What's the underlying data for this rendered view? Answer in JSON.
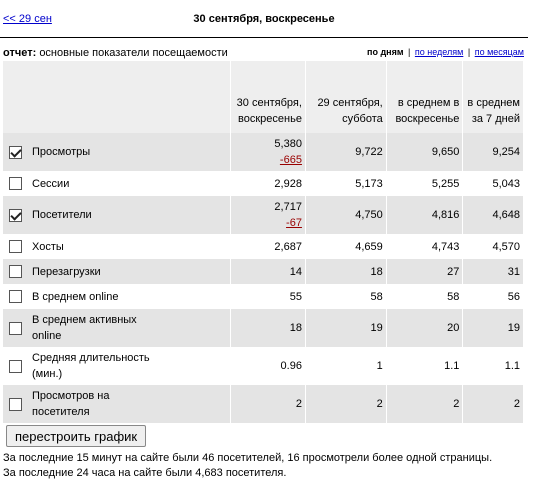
{
  "nav": {
    "prev_label": "<< 29 сен",
    "day_title": "30 сентября, воскресенье"
  },
  "report": {
    "prefix": "отчет:",
    "name": "основные показатели посещаемости"
  },
  "period": {
    "active": "по дням",
    "weeks": "по неделям",
    "months": "по месяцам",
    "separator": "|"
  },
  "table": {
    "headers": [
      "30 сентября, воскресенье",
      "29 сентября, суббота",
      "в среднем в воскресенье",
      "в среднем за 7 дней"
    ],
    "rows": [
      {
        "label": "Просмотры",
        "checked": true,
        "v1": "5,380",
        "delta": "-665",
        "v2": "9,722",
        "v3": "9,650",
        "v4": "9,254"
      },
      {
        "label": "Сессии",
        "checked": false,
        "v1": "2,928",
        "delta": "",
        "v2": "5,173",
        "v3": "5,255",
        "v4": "5,043"
      },
      {
        "label": "Посетители",
        "checked": true,
        "v1": "2,717",
        "delta": "-67",
        "v2": "4,750",
        "v3": "4,816",
        "v4": "4,648"
      },
      {
        "label": "Хосты",
        "checked": false,
        "v1": "2,687",
        "delta": "",
        "v2": "4,659",
        "v3": "4,743",
        "v4": "4,570"
      },
      {
        "label": "Перезагрузки",
        "checked": false,
        "v1": "14",
        "delta": "",
        "v2": "18",
        "v3": "27",
        "v4": "31"
      },
      {
        "label": "В среднем online",
        "checked": false,
        "v1": "55",
        "delta": "",
        "v2": "58",
        "v3": "58",
        "v4": "56"
      },
      {
        "label": "В среднем активных online",
        "checked": false,
        "v1": "18",
        "delta": "",
        "v2": "19",
        "v3": "20",
        "v4": "19"
      },
      {
        "label": "Средняя длительность (мин.)",
        "checked": false,
        "v1": "0.96",
        "delta": "",
        "v2": "1",
        "v3": "1.1",
        "v4": "1.1"
      },
      {
        "label": "Просмотров на посетителя",
        "checked": false,
        "v1": "2",
        "delta": "",
        "v2": "2",
        "v3": "2",
        "v4": "2"
      }
    ]
  },
  "rebuild_button": "перестроить график",
  "footer": {
    "line1": "За последние 15 минут на сайте были 46 посетителей, 16 просмотрели более одной страницы.",
    "line2": "За последние 24 часа на сайте были 4,683 посетителя."
  },
  "colors": {
    "delta_negative": "#990000",
    "link": "#0000cc",
    "row_shade": "#e4e4e4",
    "header_bg": "#eeeeee"
  }
}
